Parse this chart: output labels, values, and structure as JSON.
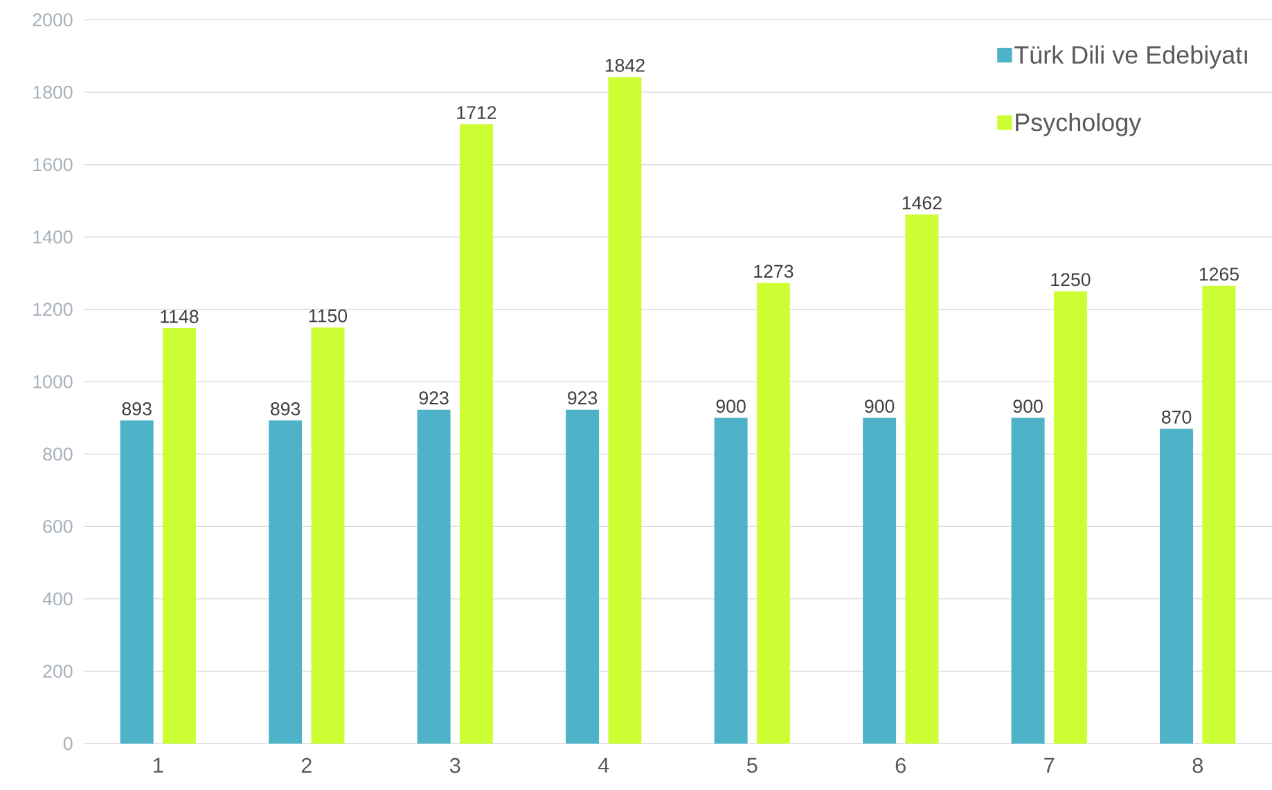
{
  "chart_data": {
    "type": "bar",
    "categories": [
      "1",
      "2",
      "3",
      "4",
      "5",
      "6",
      "7",
      "8"
    ],
    "series": [
      {
        "name": "Türk Dili ve Edebiyatı",
        "color": "#4eb3c8",
        "values": [
          893,
          893,
          923,
          923,
          900,
          900,
          900,
          870
        ]
      },
      {
        "name": "Psychology",
        "color": "#ccff33",
        "values": [
          1148,
          1150,
          1712,
          1842,
          1273,
          1462,
          1250,
          1265
        ]
      }
    ],
    "ylim": [
      0,
      2000
    ],
    "yticks": [
      0,
      200,
      400,
      600,
      800,
      1000,
      1200,
      1400,
      1600,
      1800,
      2000
    ],
    "grid": "y",
    "legend": "top right",
    "data_labels": true
  }
}
